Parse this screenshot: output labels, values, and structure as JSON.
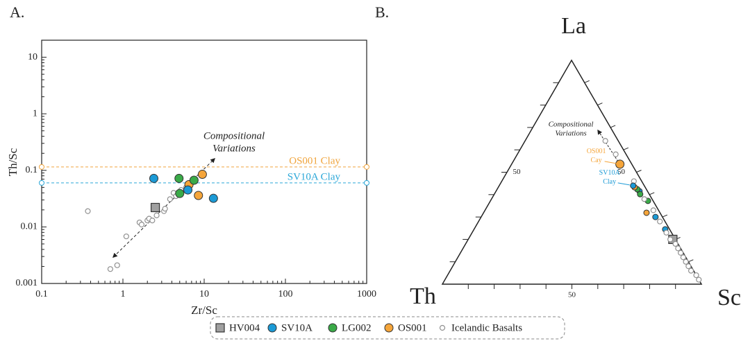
{
  "chart_data": [
    {
      "type": "scatter",
      "panel_label": "A.",
      "xlabel": "Zr/Sc",
      "ylabel": "Th/Sc",
      "xscale": "log",
      "yscale": "log",
      "xlim": [
        0.1,
        1000
      ],
      "ylim": [
        0.001,
        20
      ],
      "xticks": [
        0.1,
        1,
        10,
        100,
        1000
      ],
      "yticks": [
        0.001,
        0.01,
        0.1,
        1,
        10
      ],
      "annotation": [
        "Compositional",
        "Variations"
      ],
      "reference_lines": [
        {
          "label": "OS001 Clay",
          "value": 0.115,
          "color": "#f0a43c"
        },
        {
          "label": "SV10A Clay",
          "value": 0.06,
          "color": "#2aa7d8"
        }
      ],
      "series": [
        {
          "name": "HV004",
          "color": "#a0a0a0",
          "marker": "square",
          "x": [
            2.5
          ],
          "y": [
            0.022
          ]
        },
        {
          "name": "SV10A",
          "color": "#1b9ad6",
          "marker": "circle",
          "x": [
            2.4,
            6.3,
            13
          ],
          "y": [
            0.072,
            0.045,
            0.032
          ]
        },
        {
          "name": "LG002",
          "color": "#3aaa48",
          "marker": "circle",
          "x": [
            4.9,
            5,
            7.5
          ],
          "y": [
            0.072,
            0.039,
            0.067
          ]
        },
        {
          "name": "OS001",
          "color": "#f5a53a",
          "marker": "circle",
          "x": [
            6.5,
            9.5,
            8.5
          ],
          "y": [
            0.056,
            0.085,
            0.036
          ]
        },
        {
          "name": "Icelandic Basalts",
          "color": "#909090",
          "marker": "open-circle",
          "x": [
            0.37,
            0.7,
            0.85,
            1.1,
            1.6,
            1.7,
            2,
            2.1,
            2.3,
            2.6,
            3.2,
            3.3,
            3.8,
            4.2,
            4.5,
            5.2,
            6,
            7
          ],
          "y": [
            0.019,
            0.0018,
            0.0021,
            0.0068,
            0.012,
            0.011,
            0.013,
            0.014,
            0.013,
            0.016,
            0.019,
            0.021,
            0.031,
            0.04,
            0.035,
            0.045,
            0.05,
            0.06
          ]
        }
      ]
    },
    {
      "type": "ternary",
      "panel_label": "B.",
      "top": "La",
      "left": "Th",
      "right": "Sc",
      "ticks": [
        10,
        20,
        30,
        40,
        50,
        60,
        70,
        80,
        90
      ],
      "labeled_tick": 50,
      "annotation": [
        "Compositional",
        "Variations"
      ],
      "clays": [
        {
          "label": [
            "OS001",
            "Cay"
          ],
          "color": "#f5a53a",
          "la": 53.6,
          "th": 4.6,
          "sc": 41.8
        },
        {
          "label": [
            "SV10A",
            "Clay"
          ],
          "color": "#1b9ad6",
          "la": 44,
          "th": 4.3,
          "sc": 51.7
        }
      ],
      "series": [
        {
          "color": "#a0a0a0",
          "marker": "square",
          "la": [
            20
          ],
          "th": [
            1
          ],
          "sc": [
            79
          ]
        },
        {
          "color": "#1b9ad6",
          "marker": "circle",
          "la": [
            41.5,
            30,
            24.5
          ],
          "th": [
            3.1,
            2.7,
            1.7
          ],
          "sc": [
            55.4,
            67.3,
            73.8
          ]
        },
        {
          "color": "#3aaa48",
          "marker": "circle",
          "la": [
            42.4,
            40.2,
            37.2
          ],
          "th": [
            3.5,
            3.5,
            2
          ],
          "sc": [
            54.1,
            56.3,
            60.8
          ]
        },
        {
          "color": "#f5a53a",
          "marker": "circle",
          "la": [
            43.3,
            31.9
          ],
          "th": [
            4.1,
            5.2
          ],
          "sc": [
            52.6,
            62.9
          ]
        },
        {
          "color": "#909090",
          "marker": "open-circle",
          "la": [
            64,
            58,
            46,
            38,
            33,
            28,
            23,
            20,
            18,
            16,
            14,
            12,
            10,
            8,
            6,
            4,
            2
          ],
          "th": [
            5,
            4,
            3,
            3,
            2,
            2,
            2,
            2,
            1,
            1,
            1,
            1,
            1,
            1,
            1,
            0,
            0
          ],
          "sc": [
            31,
            38,
            51,
            59,
            65,
            70,
            75,
            78,
            81,
            83,
            85,
            87,
            89,
            91,
            93,
            96,
            98
          ]
        }
      ]
    }
  ]
}
